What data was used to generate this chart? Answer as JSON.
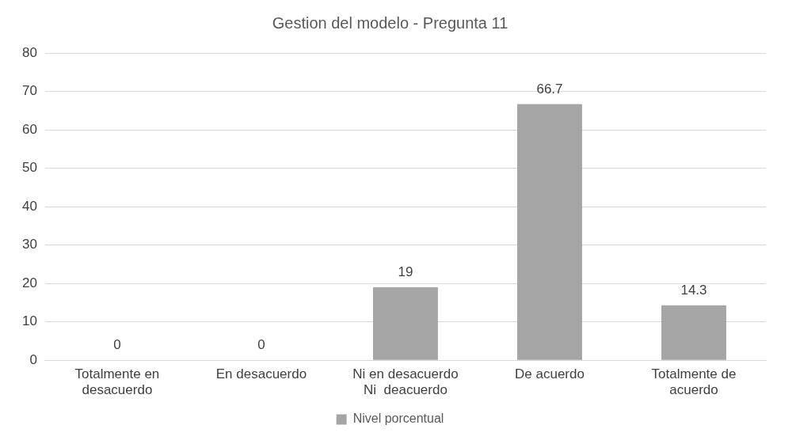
{
  "chart_data": {
    "type": "bar",
    "title": "Gestion del modelo - Pregunta 11",
    "categories": [
      "Totalmente en desacuerdo",
      "En desacuerdo",
      "Ni en desacuerdo Ni  deacuerdo",
      "De acuerdo",
      "Totalmente de acuerdo"
    ],
    "series": [
      {
        "name": "Nivel porcentual",
        "color": "#a5a5a5",
        "values": [
          0,
          0,
          19,
          66.7,
          14.3
        ]
      }
    ],
    "ylim": [
      0,
      80
    ],
    "yticks": [
      0,
      10,
      20,
      30,
      40,
      50,
      60,
      70,
      80
    ],
    "grid": "y",
    "legend": "bottom",
    "data_labels": true
  }
}
